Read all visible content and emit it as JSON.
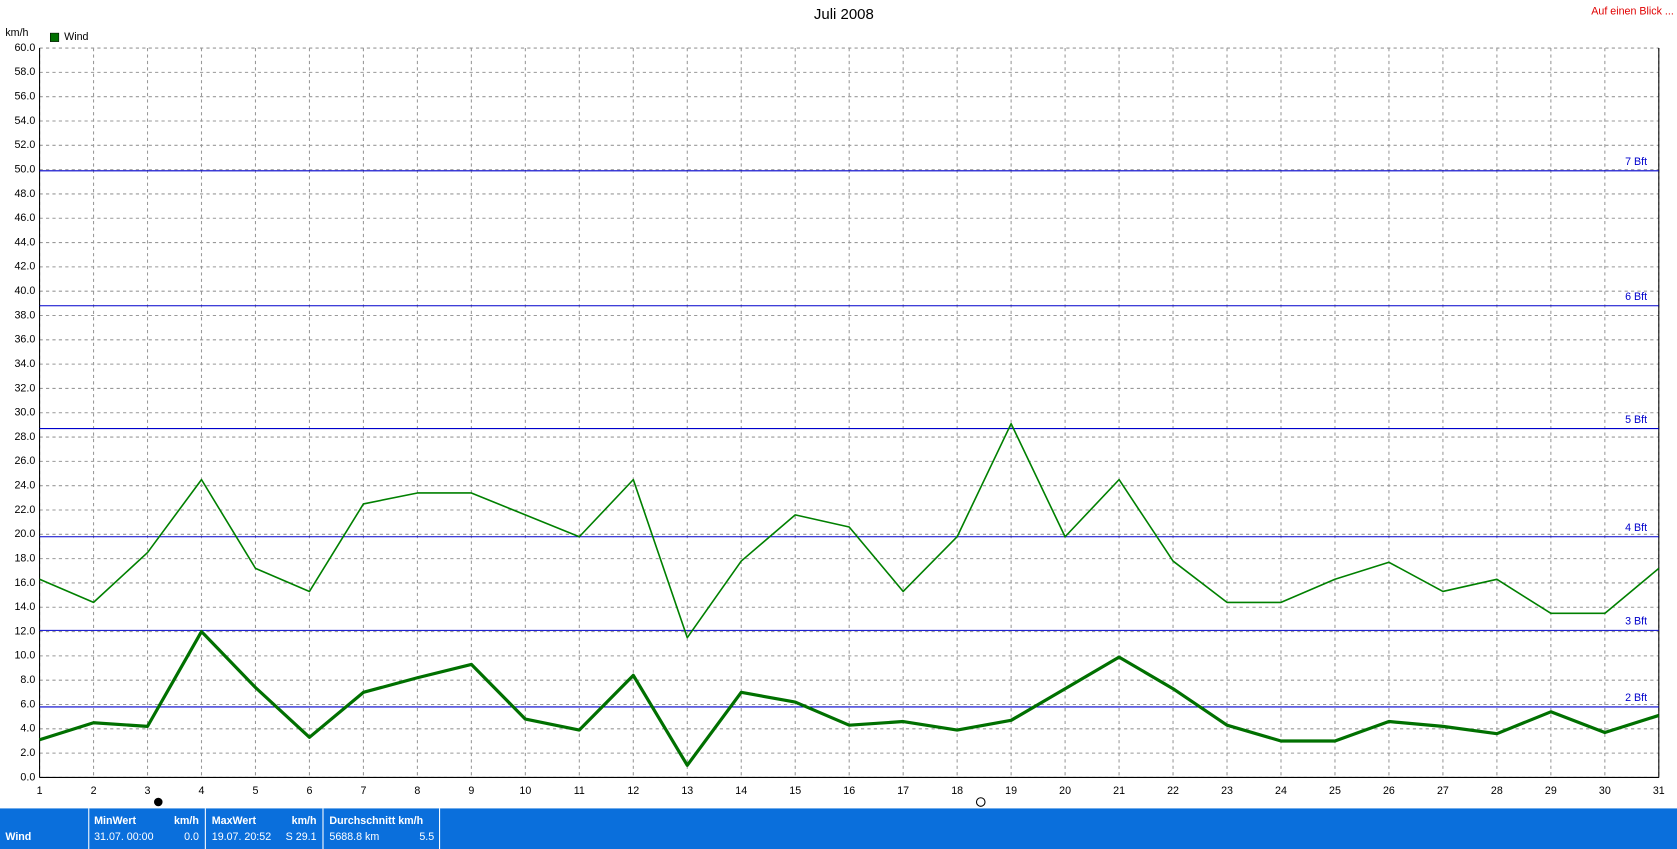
{
  "chart_data": {
    "type": "line",
    "title": "Juli 2008",
    "y_label": "km/h",
    "corner_link": "Auf einen Blick ...",
    "x": [
      1,
      2,
      3,
      4,
      5,
      6,
      7,
      8,
      9,
      10,
      11,
      12,
      13,
      14,
      15,
      16,
      17,
      18,
      19,
      20,
      21,
      22,
      23,
      24,
      25,
      26,
      27,
      28,
      29,
      30,
      31
    ],
    "xlim": [
      1,
      31
    ],
    "ylim": [
      0,
      60
    ],
    "yticks": [
      {
        "value": 0,
        "label": "0.0"
      },
      {
        "value": 2,
        "label": "2.0"
      },
      {
        "value": 4,
        "label": "4.0"
      },
      {
        "value": 6,
        "label": "6.0"
      },
      {
        "value": 8,
        "label": "8.0"
      },
      {
        "value": 10,
        "label": "10.0"
      },
      {
        "value": 12,
        "label": "12.0"
      },
      {
        "value": 14,
        "label": "14.0"
      },
      {
        "value": 16,
        "label": "16.0"
      },
      {
        "value": 18,
        "label": "18.0"
      },
      {
        "value": 20,
        "label": "20.0"
      },
      {
        "value": 22,
        "label": "22.0"
      },
      {
        "value": 24,
        "label": "24.0"
      },
      {
        "value": 26,
        "label": "26.0"
      },
      {
        "value": 28,
        "label": "28.0"
      },
      {
        "value": 30,
        "label": "30.0"
      },
      {
        "value": 32,
        "label": "32.0"
      },
      {
        "value": 34,
        "label": "34.0"
      },
      {
        "value": 36,
        "label": "36.0"
      },
      {
        "value": 38,
        "label": "38.0"
      },
      {
        "value": 40,
        "label": "40.0"
      },
      {
        "value": 42,
        "label": "42.0"
      },
      {
        "value": 44,
        "label": "44.0"
      },
      {
        "value": 46,
        "label": "46.0"
      },
      {
        "value": 48,
        "label": "48.0"
      },
      {
        "value": 50,
        "label": "50.0"
      },
      {
        "value": 52,
        "label": "52.0"
      },
      {
        "value": 54,
        "label": "54.0"
      },
      {
        "value": 56,
        "label": "56.0"
      },
      {
        "value": 58,
        "label": "58.0"
      },
      {
        "value": 60,
        "label": "60.0"
      }
    ],
    "grid": true,
    "series": [
      {
        "name": "Wind",
        "color": "#007000",
        "width": 3,
        "values": [
          3.1,
          4.5,
          4.2,
          12.0,
          7.4,
          3.3,
          7.0,
          8.2,
          9.3,
          4.8,
          3.9,
          8.4,
          1.0,
          7.0,
          6.2,
          4.3,
          4.6,
          3.9,
          4.7,
          7.3,
          9.9,
          7.3,
          4.3,
          3.0,
          3.0,
          4.6,
          4.2,
          3.6,
          5.4,
          3.7,
          5.1
        ]
      },
      {
        "color": "#008000",
        "width": 1.5,
        "values": [
          16.3,
          14.4,
          18.5,
          24.5,
          17.2,
          15.3,
          22.5,
          23.4,
          23.4,
          21.6,
          19.8,
          24.5,
          11.5,
          17.8,
          21.6,
          20.6,
          15.3,
          19.8,
          29.1,
          19.8,
          24.5,
          17.8,
          14.4,
          14.4,
          16.3,
          17.7,
          15.3,
          16.3,
          13.5,
          13.5,
          17.2
        ]
      }
    ],
    "reference_lines": [
      {
        "label": "2 Bft",
        "value": 5.8
      },
      {
        "label": "3 Bft",
        "value": 12.1
      },
      {
        "label": "4 Bft",
        "value": 19.8
      },
      {
        "label": "5 Bft",
        "value": 28.7
      },
      {
        "label": "6 Bft",
        "value": 38.8
      },
      {
        "label": "7 Bft",
        "value": 49.9
      }
    ],
    "reference_color": "#0000cc"
  },
  "footer": {
    "row_label": "Wind",
    "min": {
      "title": "MinWert",
      "unit": "km/h",
      "when": "31.07.  00:00",
      "value": "0.0"
    },
    "max": {
      "title": "MaxWert",
      "unit": "km/h",
      "when": "19.07.  20:52",
      "value": "S 29.1"
    },
    "avg": {
      "title": "Durchschnitt km/h",
      "when": "5688.8 km",
      "value": "5.5"
    }
  }
}
